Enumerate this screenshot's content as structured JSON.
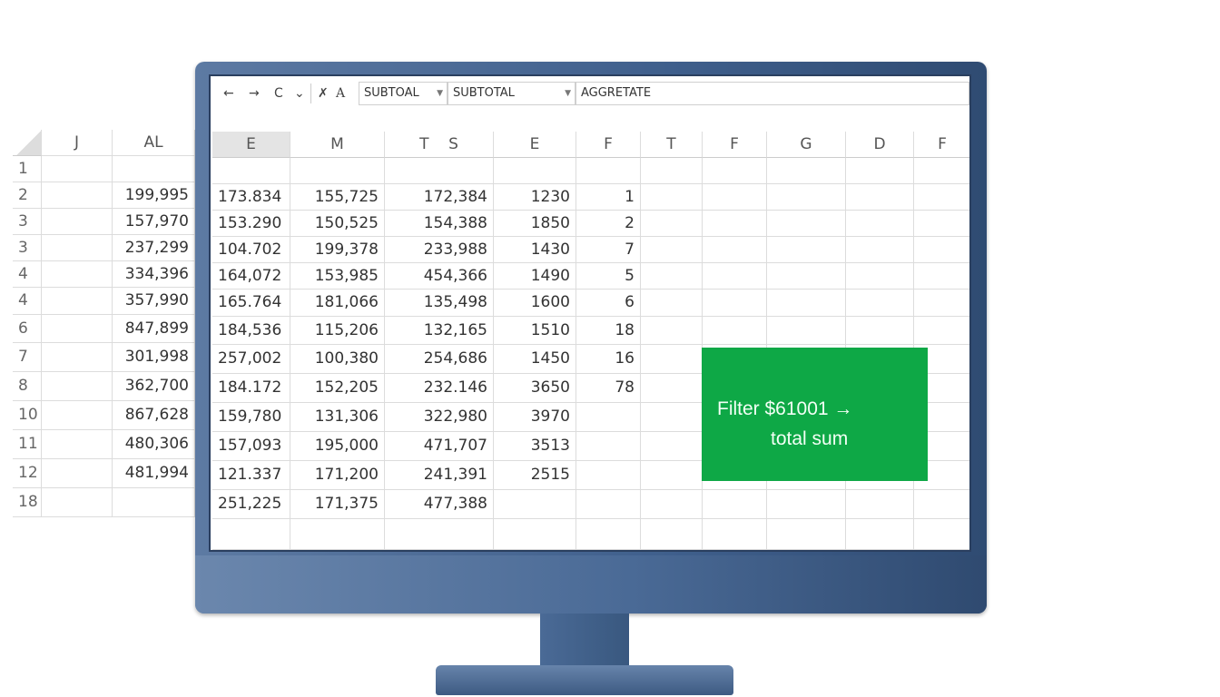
{
  "toolbar": {
    "icons": [
      "back-arrow-icon",
      "forward-arrow-icon",
      "redo-icon",
      "dropdown-icon",
      "clear-format-icon",
      "font-icon"
    ],
    "glyphs": [
      "←",
      "→",
      "C",
      "⌄",
      "✗",
      "A"
    ],
    "field1": "SUBTOAL",
    "field2": "SUBTOTAL",
    "field3": "AGGRETATE"
  },
  "left_sheet": {
    "columns": [
      "J",
      "AL"
    ],
    "row_numbers": [
      "1",
      "2",
      "3",
      "3",
      "4",
      "4",
      "6",
      "7",
      "8",
      "10",
      "11",
      "12",
      "18"
    ],
    "al_values": [
      "",
      "199,995",
      "157,970",
      "237,299",
      "334,396",
      "357,990",
      "847,899",
      "301,998",
      "362,700",
      "867,628",
      "480,306",
      "481,994",
      ""
    ]
  },
  "main_sheet": {
    "columns": [
      "E",
      "M",
      "T    S",
      "E",
      "F",
      "T",
      "F",
      "G",
      "D",
      "F"
    ],
    "rows": [
      [
        "",
        "",
        "",
        "",
        ""
      ],
      [
        "173.834",
        "155,725",
        "172,384",
        "1230",
        "1"
      ],
      [
        "153.290",
        "150,525",
        "154,388",
        "1850",
        "2"
      ],
      [
        "104.702",
        "199,378",
        "233,988",
        "1430",
        "7"
      ],
      [
        "164,072",
        "153,985",
        "454,366",
        "1490",
        "5"
      ],
      [
        "165.764",
        "181,066",
        "135,498",
        "1600",
        "6"
      ],
      [
        "184,536",
        "115,206",
        "132,165",
        "1510",
        "18"
      ],
      [
        "257,002",
        "100,380",
        "254,686",
        "1450",
        "16"
      ],
      [
        "184.172",
        "152,205",
        "232.146",
        "3650",
        "78"
      ],
      [
        "159,780",
        "131,306",
        "322,980",
        "3970",
        ""
      ],
      [
        "157,093",
        "195,000",
        "471,707",
        "3513",
        ""
      ],
      [
        "121.337",
        "171,200",
        "241,391",
        "2515",
        ""
      ],
      [
        "251,225",
        "171,375",
        "477,388",
        "",
        ""
      ]
    ]
  },
  "callout": {
    "line1": "Filter  $61001 →",
    "line2": "total sum",
    "color": "#0ea846"
  },
  "colors": {
    "monitor": "#3f5f8c",
    "grid": "#dcdcdc"
  }
}
